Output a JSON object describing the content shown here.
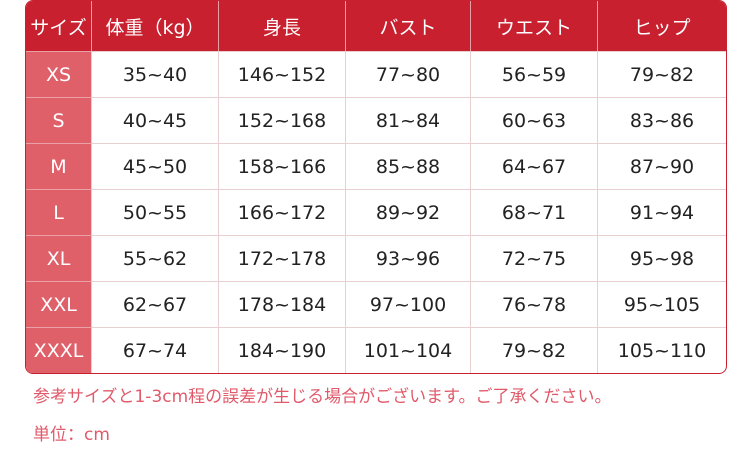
{
  "colors": {
    "header": "#c8202f",
    "size_column": "#e0606a",
    "note": "#e05a6a"
  },
  "table": {
    "headers": [
      "サイズ",
      "体重（kg）",
      "身長",
      "バスト",
      "ウエスト",
      "ヒップ"
    ],
    "rows": [
      [
        "XS",
        "35~40",
        "146~152",
        "77~80",
        "56~59",
        "79~82"
      ],
      [
        "S",
        "40~45",
        "152~168",
        "81~84",
        "60~63",
        "83~86"
      ],
      [
        "M",
        "45~50",
        "158~166",
        "85~88",
        "64~67",
        "87~90"
      ],
      [
        "L",
        "50~55",
        "166~172",
        "89~92",
        "68~71",
        "91~94"
      ],
      [
        "XL",
        "55~62",
        "172~178",
        "93~96",
        "72~75",
        "95~98"
      ],
      [
        "XXL",
        "62~67",
        "178~184",
        "97~100",
        "76~78",
        "95~105"
      ],
      [
        "XXXL",
        "67~74",
        "184~190",
        "101~104",
        "79~82",
        "105~110"
      ]
    ]
  },
  "notes": {
    "error": "参考サイズと1-3cm程の誤差が生じる場合がございます。ご了承ください。",
    "unit": "単位：cm"
  }
}
